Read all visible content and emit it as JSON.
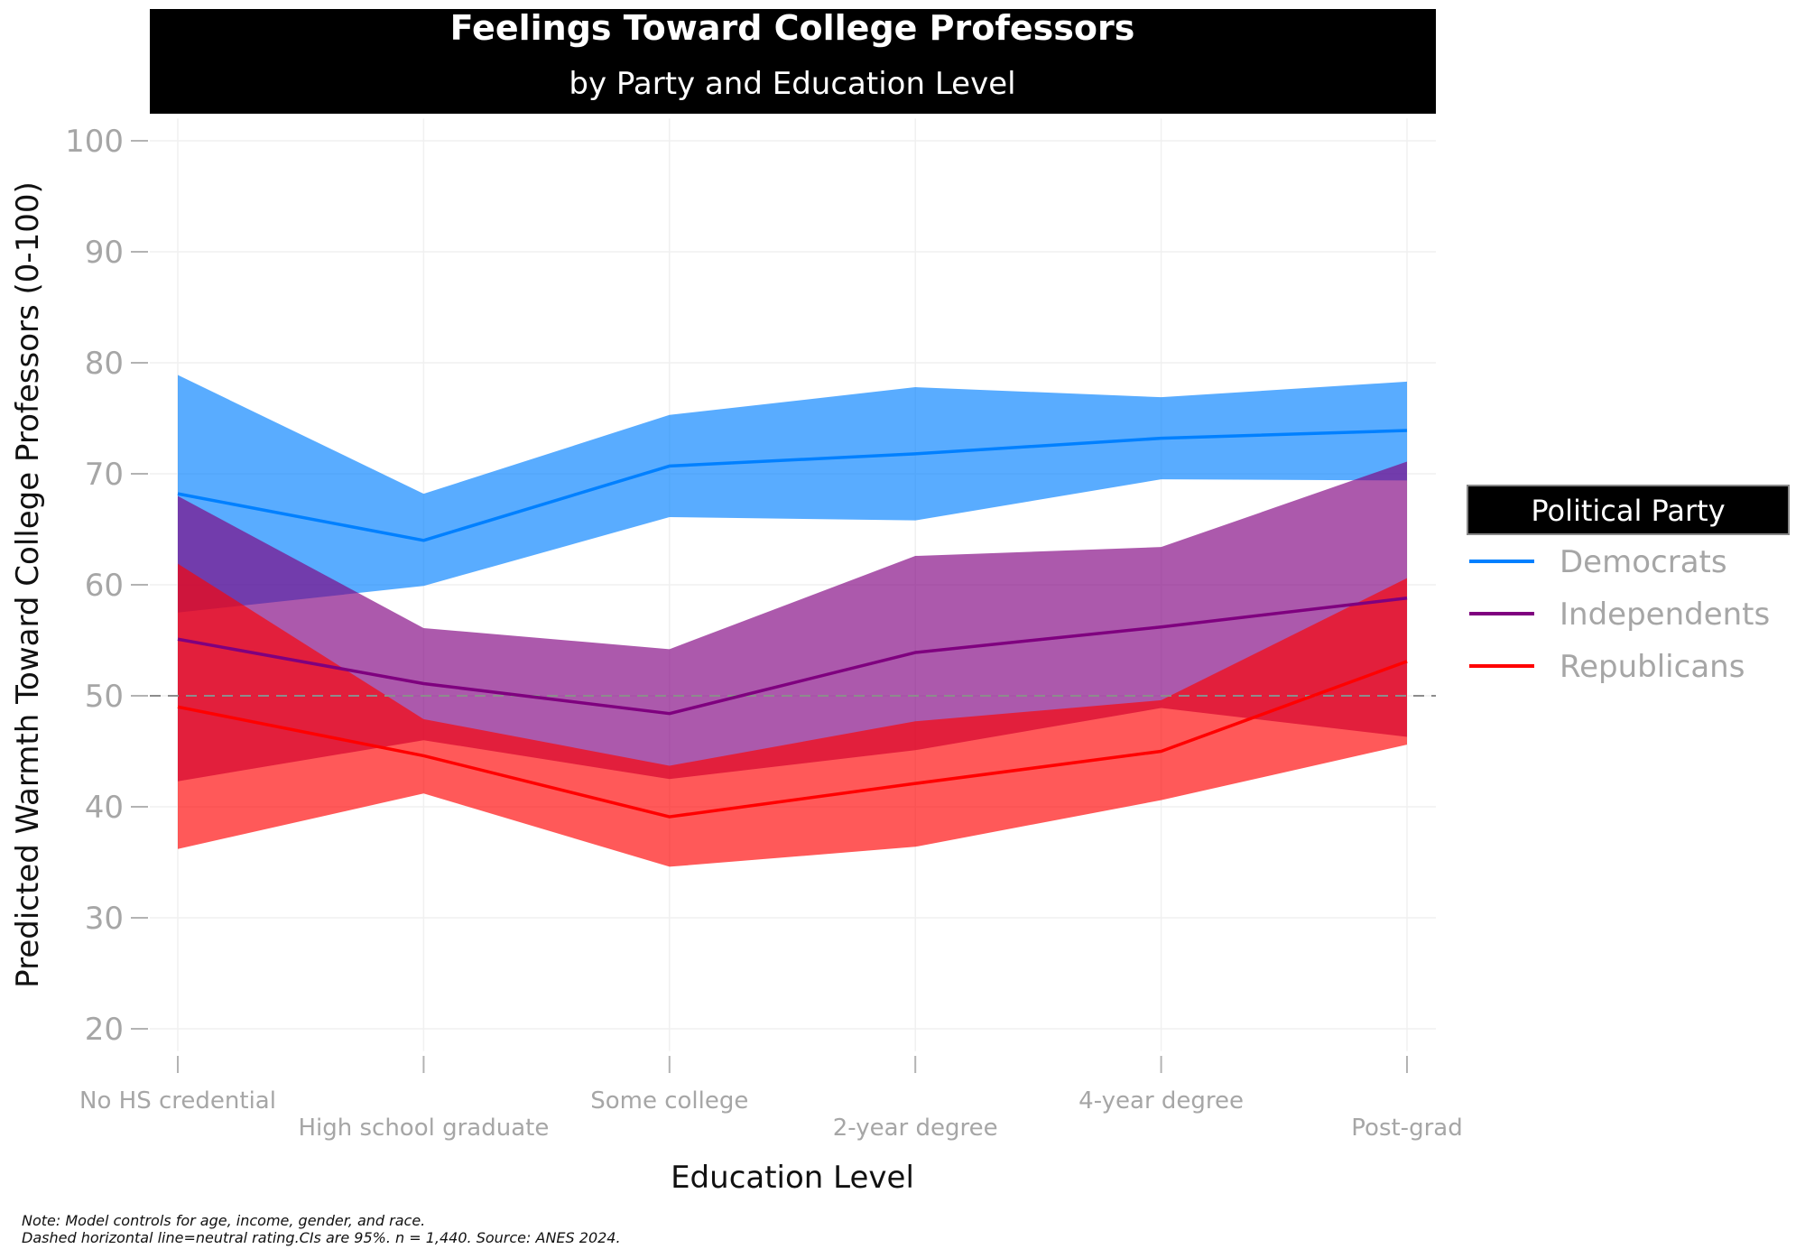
{
  "chart_data": {
    "type": "line",
    "title": "Feelings Toward College Professors",
    "subtitle": "by Party and Education Level",
    "xlabel": "Education Level",
    "ylabel": "Predicted Warmth Toward College Professors (0-100)",
    "ylim": [
      18,
      102
    ],
    "yticks": [
      20,
      30,
      40,
      50,
      60,
      70,
      80,
      90,
      100
    ],
    "categories": [
      "No HS credential",
      "High school graduate",
      "Some college",
      "2-year degree",
      "4-year degree",
      "Post-grad"
    ],
    "reference_line": {
      "value": 50,
      "style": "dashed"
    },
    "legend": {
      "title": "Political Party",
      "position": "right"
    },
    "series": [
      {
        "name": "Democrats",
        "color": "#0080ff",
        "values": [
          68.2,
          64.0,
          70.7,
          71.8,
          73.2,
          73.9
        ],
        "ci_low": [
          57.5,
          59.9,
          66.1,
          65.8,
          69.5,
          69.4
        ],
        "ci_high": [
          78.9,
          68.2,
          75.3,
          77.8,
          76.9,
          78.3
        ]
      },
      {
        "name": "Independents",
        "color": "#7f007f",
        "values": [
          55.1,
          51.1,
          48.4,
          53.9,
          56.2,
          58.8
        ],
        "ci_low": [
          42.3,
          46.0,
          42.5,
          45.1,
          48.9,
          46.3
        ],
        "ci_high": [
          68.0,
          56.1,
          54.2,
          62.6,
          63.4,
          71.1
        ]
      },
      {
        "name": "Republicans",
        "color": "#ff0000",
        "values": [
          49.0,
          44.6,
          39.1,
          42.1,
          45.0,
          53.1
        ],
        "ci_low": [
          36.2,
          41.2,
          34.6,
          36.4,
          40.6,
          45.6
        ],
        "ci_high": [
          61.9,
          47.9,
          43.7,
          47.7,
          49.6,
          60.6
        ]
      }
    ],
    "notes": [
      "Note: Model controls for age, income, gender, and race.",
      "Dashed horizontal line=neutral rating.CIs are 95%. n = 1,440. Source: ANES 2024."
    ]
  }
}
